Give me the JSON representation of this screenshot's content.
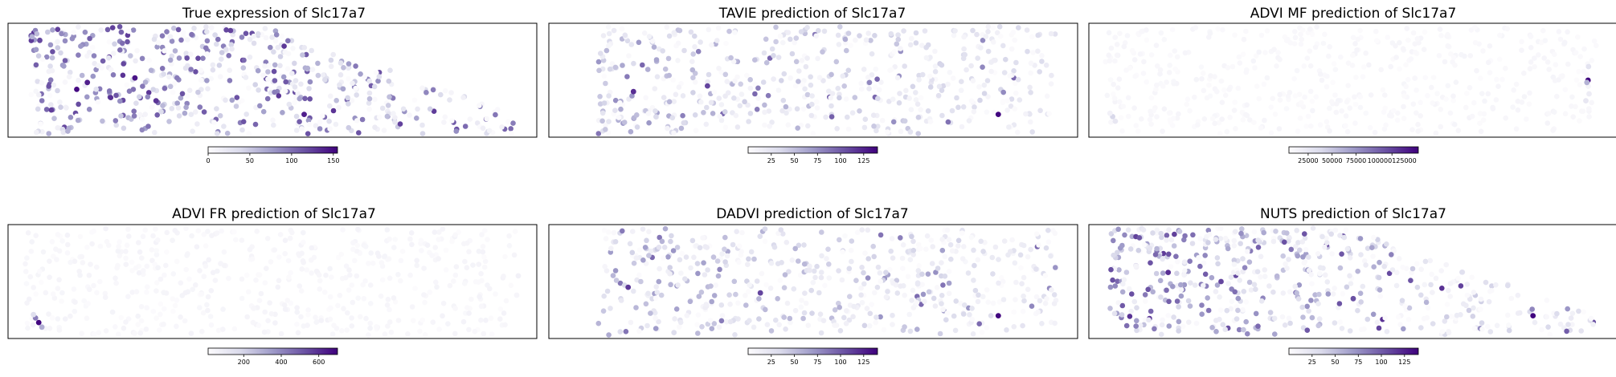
{
  "colormap": {
    "name": "Purples",
    "low": "#fcfbfd",
    "mid": "#9e9ac8",
    "high": "#3f007d"
  },
  "chart_data": [
    {
      "type": "scatter",
      "title": "True expression of Slc17a7",
      "xlabel": "",
      "ylabel": "",
      "grid": false,
      "colorbar": {
        "min": 0,
        "max": 155,
        "ticks": [
          "0",
          "50",
          "100",
          "150"
        ],
        "tick_values": [
          0,
          50,
          100,
          150
        ]
      },
      "pattern": {
        "seed": 11,
        "n": 600,
        "xrange": [
          0.04,
          0.96
        ],
        "shape": "wedge",
        "slope": 0.82,
        "high_frac": 0.3,
        "gamma": 1.8
      },
      "highlights": [
        [
          0.13,
          0.58,
          150
        ],
        [
          0.15,
          0.52,
          140
        ],
        [
          0.24,
          0.48,
          145
        ],
        [
          0.28,
          0.68,
          130
        ],
        [
          0.56,
          0.8,
          140
        ],
        [
          0.06,
          0.15,
          120
        ]
      ]
    },
    {
      "type": "scatter",
      "title": "TAVIE prediction of Slc17a7",
      "xlabel": "",
      "ylabel": "",
      "grid": false,
      "colorbar": {
        "min": 0,
        "max": 140,
        "ticks": [
          "25",
          "50",
          "75",
          "100",
          "125"
        ],
        "tick_values": [
          25,
          50,
          75,
          100,
          125
        ]
      },
      "pattern": {
        "seed": 23,
        "n": 560,
        "xrange": [
          0.09,
          0.96
        ],
        "shape": "rect",
        "left_slope": 0.85,
        "gradient": 1.0,
        "high_frac": 0.05,
        "gamma": 1.6
      },
      "highlights": [
        [
          0.85,
          0.8,
          138
        ],
        [
          0.16,
          0.6,
          120
        ],
        [
          0.3,
          0.55,
          110
        ]
      ]
    },
    {
      "type": "scatter",
      "title": "ADVI MF prediction of Slc17a7",
      "xlabel": "",
      "ylabel": "",
      "grid": false,
      "colorbar": {
        "min": 5000,
        "max": 140000,
        "ticks": [
          "25000",
          "50000",
          "75000",
          "100000125000"
        ],
        "tick_values": [
          25000,
          50000,
          75000,
          112500
        ]
      },
      "pattern": {
        "seed": 37,
        "n": 520,
        "xrange": [
          0.03,
          0.96
        ],
        "shape": "rect",
        "left_slope": 0.0,
        "gradient": 0.0,
        "high_frac": 0.0,
        "gamma": 1.0,
        "base_max": 0.05
      },
      "highlights": [
        [
          0.944,
          0.5,
          140000
        ],
        [
          0.942,
          0.52,
          60000
        ],
        [
          0.945,
          0.38,
          30000
        ],
        [
          0.94,
          0.68,
          25000
        ],
        [
          0.946,
          0.62,
          20000
        ],
        [
          0.045,
          0.82,
          40000
        ],
        [
          0.05,
          0.86,
          25000
        ],
        [
          0.04,
          0.79,
          15000
        ]
      ]
    },
    {
      "type": "scatter",
      "title": "ADVI FR prediction of Slc17a7",
      "xlabel": "",
      "ylabel": "",
      "grid": false,
      "colorbar": {
        "min": 10,
        "max": 700,
        "ticks": [
          "200",
          "400",
          "600"
        ],
        "tick_values": [
          200,
          400,
          600
        ]
      },
      "pattern": {
        "seed": 41,
        "n": 540,
        "xrange": [
          0.03,
          0.96
        ],
        "shape": "rect",
        "left_slope": 0.0,
        "gradient": 0.0,
        "high_frac": 0.0,
        "gamma": 1.0,
        "base_max": 0.06
      },
      "highlights": [
        [
          0.058,
          0.86,
          690
        ],
        [
          0.052,
          0.82,
          420
        ],
        [
          0.064,
          0.9,
          300
        ],
        [
          0.048,
          0.79,
          150
        ],
        [
          0.965,
          0.45,
          60
        ],
        [
          0.962,
          0.62,
          40
        ]
      ]
    },
    {
      "type": "scatter",
      "title": "DADVI prediction of Slc17a7",
      "xlabel": "",
      "ylabel": "",
      "grid": false,
      "colorbar": {
        "min": 0,
        "max": 140,
        "ticks": [
          "25",
          "50",
          "75",
          "100",
          "125"
        ],
        "tick_values": [
          25,
          50,
          75,
          100,
          125
        ]
      },
      "pattern": {
        "seed": 53,
        "n": 560,
        "xrange": [
          0.09,
          0.96
        ],
        "shape": "rect",
        "left_slope": 0.85,
        "gradient": 1.0,
        "high_frac": 0.05,
        "gamma": 1.6
      },
      "highlights": [
        [
          0.85,
          0.8,
          138
        ],
        [
          0.15,
          0.55,
          115
        ],
        [
          0.4,
          0.6,
          110
        ]
      ]
    },
    {
      "type": "scatter",
      "title": "NUTS prediction of Slc17a7",
      "xlabel": "",
      "ylabel": "",
      "grid": false,
      "colorbar": {
        "min": 0,
        "max": 140,
        "ticks": [
          "25",
          "50",
          "75",
          "100",
          "125"
        ],
        "tick_values": [
          25,
          50,
          75,
          100,
          125
        ]
      },
      "pattern": {
        "seed": 67,
        "n": 580,
        "xrange": [
          0.04,
          0.96
        ],
        "shape": "wedge",
        "slope": 0.75,
        "high_frac": 0.07,
        "gamma": 1.7
      },
      "highlights": [
        [
          0.84,
          0.8,
          138
        ],
        [
          0.15,
          0.42,
          120
        ],
        [
          0.25,
          0.5,
          110
        ],
        [
          0.5,
          0.65,
          105
        ]
      ]
    }
  ]
}
